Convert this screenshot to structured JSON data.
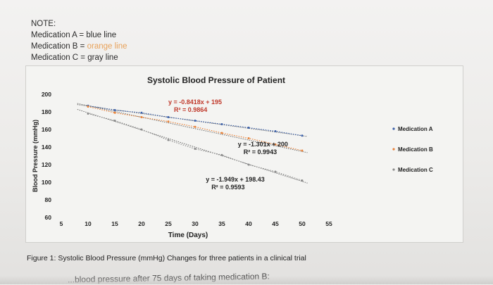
{
  "note": {
    "title": "NOTE:",
    "line_a": "Medication A = blue line",
    "line_b_prefix": "Medication B = ",
    "line_b_color_text": "orange line",
    "line_c": "Medication C = gray line"
  },
  "figure_caption": "Figure 1: Systolic Blood Pressure (mmHg) Changes for three patients in a clinical trial",
  "cutoff_text": "...blood pressure after 75 days of taking medication B:",
  "colors": {
    "medication_a": "#3a5fa8",
    "medication_b": "#e8823a",
    "medication_c": "#8a8a8a",
    "trend": "#6a6a6a",
    "equation_red": "#c0392b"
  },
  "chart_data": {
    "type": "scatter",
    "title": "Systolic Blood Pressure of Patient",
    "xlabel": "Time (Days)",
    "ylabel": "Blood Pressure (mmHg)",
    "xlim": [
      5,
      55
    ],
    "ylim": [
      60,
      200
    ],
    "x_ticks": [
      "5",
      "10",
      "15",
      "20",
      "25",
      "30",
      "35",
      "40",
      "45",
      "50",
      "55"
    ],
    "y_ticks": [
      "60",
      "80",
      "100",
      "120",
      "140",
      "160",
      "180",
      "200"
    ],
    "legend_position": "right",
    "series": [
      {
        "name": "Medication A",
        "color_key": "medication_a",
        "x": [
          10,
          15,
          20,
          25,
          30,
          35,
          40,
          45,
          50
        ],
        "y": [
          187,
          182,
          179,
          174,
          170,
          166,
          162,
          158,
          153
        ],
        "trendline": {
          "slope": -0.8418,
          "intercept": 195
        },
        "equation": "y = -0.8418x + 195",
        "r2": "R² = 0.9864"
      },
      {
        "name": "Medication B",
        "color_key": "medication_b",
        "x": [
          10,
          15,
          20,
          25,
          30,
          35,
          40,
          45,
          50
        ],
        "y": [
          186,
          179,
          174,
          169,
          163,
          156,
          150,
          143,
          136
        ],
        "trendline": {
          "slope": -1.301,
          "intercept": 200
        },
        "equation": "y = -1.301x + 200",
        "r2": "R² = 0.9943"
      },
      {
        "name": "Medication C",
        "color_key": "medication_c",
        "x": [
          10,
          15,
          20,
          25,
          30,
          35,
          40,
          45,
          50
        ],
        "y": [
          178,
          170,
          160,
          148,
          138,
          131,
          120,
          112,
          102
        ],
        "trendline": {
          "slope": -1.949,
          "intercept": 198.43
        },
        "equation": "y = -1.949x + 198.43",
        "r2": "R² = 0.9593"
      }
    ],
    "legend_items": [
      "Medication A",
      "Medication B",
      "Medication C"
    ]
  }
}
